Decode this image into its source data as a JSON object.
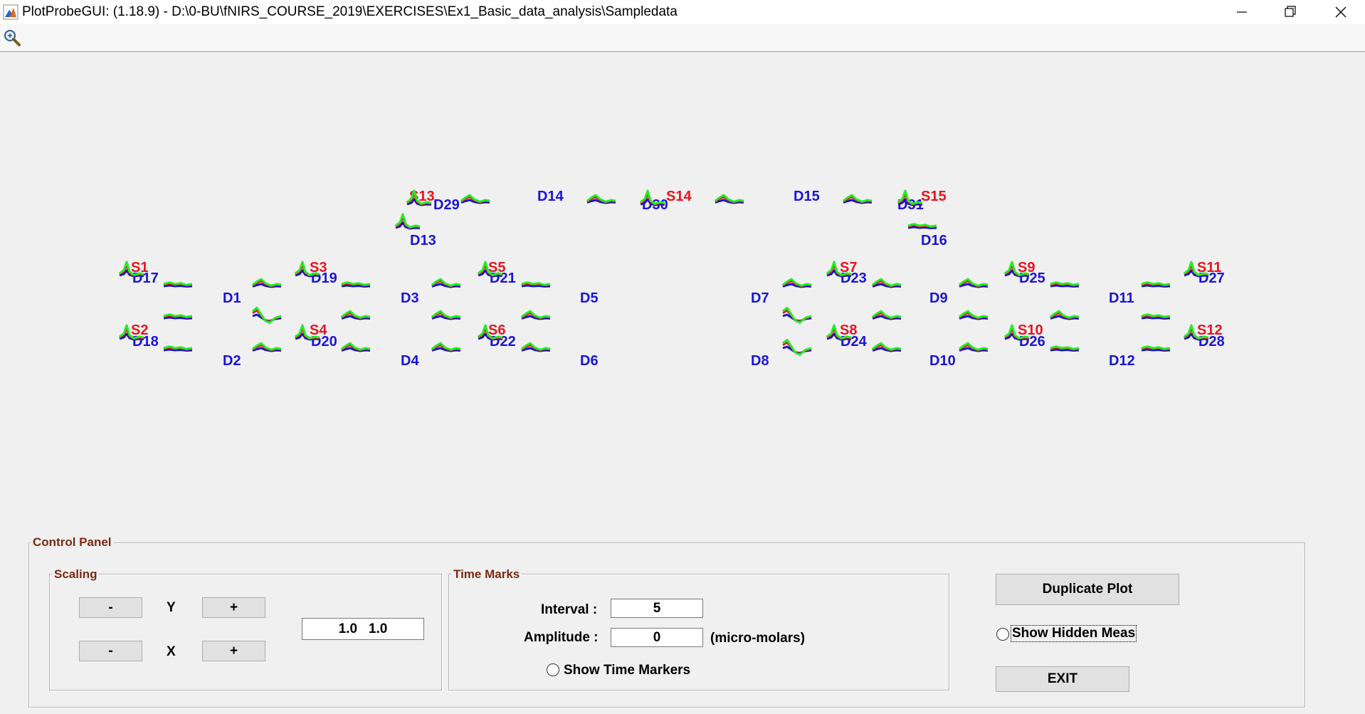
{
  "window": {
    "title": "PlotProbeGUI: (1.18.9) - D:\\0-BU\\fNIRS_COURSE_2019\\EXERCISES\\Ex1_Basic_data_analysis\\Sampledata"
  },
  "toolbar": {
    "zoom_icon": "zoom-in-icon"
  },
  "colors": {
    "source": "#e8141e",
    "detector": "#1a14d8",
    "hbo": "#e8141e",
    "hbr": "#1414d0",
    "hbt": "#22ee22",
    "panel_title": "#7a2a10"
  },
  "probe": {
    "sources": [
      "S1",
      "S2",
      "S3",
      "S4",
      "S5",
      "S6",
      "S7",
      "S8",
      "S9",
      "S10",
      "S11",
      "S12",
      "S13",
      "S14",
      "S15"
    ],
    "detectors": [
      "D1",
      "D2",
      "D3",
      "D4",
      "D5",
      "D6",
      "D7",
      "D8",
      "D9",
      "D10",
      "D11",
      "D12",
      "D13",
      "D14",
      "D15",
      "D16",
      "D17",
      "D18",
      "D19",
      "D20",
      "D21",
      "D22",
      "D23",
      "D24",
      "D25",
      "D26",
      "D27",
      "D28",
      "D29",
      "D30",
      "D31"
    ]
  },
  "control_panel": {
    "title": "Control Panel",
    "scaling": {
      "title": "Scaling",
      "y_label": "Y",
      "x_label": "X",
      "minus_label": "-",
      "plus_label": "+",
      "scale_value": "1.0   1.0"
    },
    "time_marks": {
      "title": "Time Marks",
      "interval_label": "Interval :",
      "interval_value": "5",
      "amplitude_label": "Amplitude :",
      "amplitude_value": "0",
      "amplitude_unit": "(micro-molars)",
      "show_time_markers_label": "Show Time Markers"
    },
    "duplicate_plot_label": "Duplicate Plot",
    "show_hidden_meas_label": "Show Hidden Meas",
    "exit_label": "EXIT"
  }
}
